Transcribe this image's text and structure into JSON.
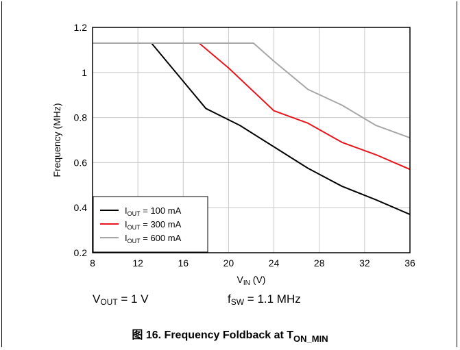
{
  "chart_data": {
    "type": "line",
    "title": "",
    "xlabel": {
      "main": "V",
      "sub": "IN",
      "unit": " (V)"
    },
    "ylabel": "Frequency (MHz)",
    "xlim": [
      8,
      36
    ],
    "ylim": [
      0.2,
      1.2
    ],
    "xticks": [
      "8",
      "12",
      "16",
      "20",
      "24",
      "28",
      "32",
      "36"
    ],
    "yticks": [
      "0.2",
      "0.4",
      "0.6",
      "0.8",
      "1",
      "1.2"
    ],
    "grid": true,
    "legend_position": "bottom-left",
    "series": [
      {
        "name": "I_OUT = 100 mA",
        "label_main": "I",
        "label_sub": "OUT",
        "label_rest": " = 100 mA",
        "color": "#000000",
        "x": [
          8,
          13.2,
          18,
          20,
          21,
          24,
          27,
          30,
          33,
          36
        ],
        "y": [
          1.13,
          1.13,
          0.84,
          0.79,
          0.765,
          0.67,
          0.575,
          0.495,
          0.435,
          0.37
        ]
      },
      {
        "name": "I_OUT = 300 mA",
        "label_main": "I",
        "label_sub": "OUT",
        "label_rest": " = 300 mA",
        "color": "#e8141c",
        "x": [
          17.4,
          20,
          24,
          27,
          30,
          33,
          36
        ],
        "y": [
          1.13,
          1.02,
          0.83,
          0.775,
          0.69,
          0.635,
          0.57
        ]
      },
      {
        "name": "I_OUT = 600 mA",
        "label_main": "I",
        "label_sub": "OUT",
        "label_rest": " = 600 mA",
        "color": "#a6a6a6",
        "x": [
          8,
          22.2,
          24,
          27,
          30,
          33,
          36
        ],
        "y": [
          1.13,
          1.13,
          1.05,
          0.925,
          0.855,
          0.765,
          0.71
        ]
      }
    ]
  },
  "notes": {
    "vout": {
      "main": "V",
      "sub": "OUT",
      "rest": " = 1 V"
    },
    "fsw": {
      "main": "f",
      "sub": "SW",
      "rest": " = 1.1 MHz"
    }
  },
  "caption": {
    "main": "图 16. Frequency Foldback at T",
    "sub": "ON_MIN"
  }
}
